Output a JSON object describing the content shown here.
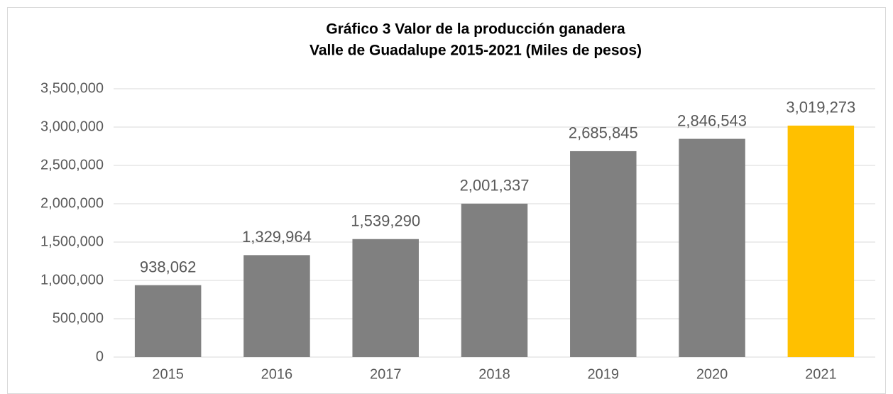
{
  "chart_data": {
    "type": "bar",
    "title": [
      "Gráfico 3 Valor de la producción ganadera",
      "Valle de Guadalupe 2015-2021 (Miles de pesos)"
    ],
    "categories": [
      "2015",
      "2016",
      "2017",
      "2018",
      "2019",
      "2020",
      "2021"
    ],
    "values": [
      938062,
      1329964,
      1539290,
      2001337,
      2685845,
      2846543,
      3019273
    ],
    "value_labels": [
      "938,062",
      "1,329,964",
      "1,539,290",
      "2,001,337",
      "2,685,845",
      "2,846,543",
      "3,019,273"
    ],
    "colors": [
      "#808080",
      "#808080",
      "#808080",
      "#808080",
      "#808080",
      "#808080",
      "#ffc000"
    ],
    "ylim": [
      0,
      3500000
    ],
    "yticks": [
      0,
      {
        "value": 500000,
        "label": "500,000"
      },
      {
        "value": 1000000,
        "label": "1,000,000"
      },
      {
        "value": 1500000,
        "label": "1,500,000"
      },
      {
        "value": 2000000,
        "label": "2,000,000"
      },
      {
        "value": 2500000,
        "label": "2,500,000"
      },
      {
        "value": 3000000,
        "label": "3,000,000"
      },
      {
        "value": 3500000,
        "label": "3,500,000"
      }
    ],
    "grid": true
  }
}
